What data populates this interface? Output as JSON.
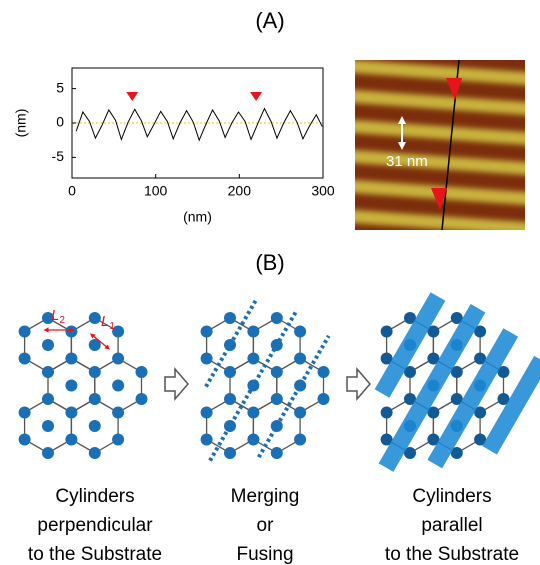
{
  "panel_a": {
    "label": "(A)"
  },
  "chart_data": {
    "type": "line",
    "x": [
      5,
      13,
      21,
      28,
      36,
      44,
      52,
      59,
      67,
      75,
      83,
      90,
      98,
      106,
      114,
      121,
      129,
      137,
      145,
      152,
      160,
      168,
      176,
      183,
      191,
      199,
      207,
      214,
      222,
      230,
      238,
      245,
      253,
      261,
      269,
      276,
      284,
      292,
      299
    ],
    "series": [
      {
        "color": "#000000",
        "values": [
          -1.2,
          1.6,
          0.2,
          -2.2,
          -0.3,
          1.9,
          0.4,
          -2.4,
          0.1,
          2.0,
          0.3,
          -2.0,
          -0.2,
          1.7,
          0.2,
          -2.3,
          0,
          1.8,
          0.1,
          -2.5,
          -0.2,
          1.9,
          0.3,
          -2.1,
          0,
          1.6,
          0.2,
          -2.4,
          -0.1,
          2.1,
          0.2,
          -2.2,
          0,
          1.8,
          0.1,
          -2.3,
          -0.4,
          1.2,
          -0.5
        ]
      }
    ],
    "xlim": [
      0,
      300
    ],
    "ylim": [
      -8,
      8
    ],
    "xticks": [
      0,
      100,
      200,
      300
    ],
    "yticks": [
      -5,
      0,
      5
    ],
    "xlabel": "(nm)",
    "ylabel": "(nm)",
    "zero_line": true,
    "zero_line_color": "#e6d200",
    "markers": {
      "x": [
        72,
        220
      ],
      "y": [
        3.2,
        3.2
      ],
      "color": "#e8141c"
    }
  },
  "afm_image": {
    "scale_label": "31 nm"
  },
  "panel_b": {
    "label": "(B)",
    "annotation_symbol": "L",
    "annotation_subscripts": [
      "2",
      "1"
    ],
    "captions": [
      [
        "Cylinders",
        "perpendicular",
        "to the Substrate"
      ],
      [
        "Merging",
        "or",
        "Fusing"
      ],
      [
        "Cylinders",
        "parallel",
        "to the Substrate"
      ]
    ]
  }
}
